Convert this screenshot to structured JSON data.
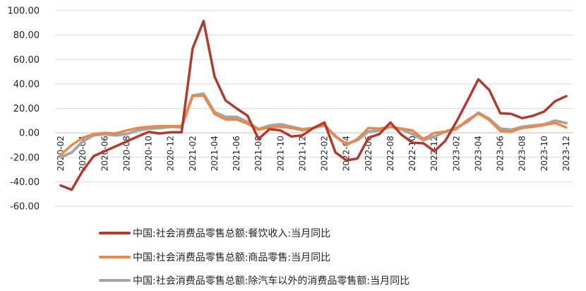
{
  "chart_data": {
    "type": "line",
    "title": "",
    "xlabel": "",
    "ylabel": "",
    "ylim": [
      -60,
      100
    ],
    "yticks": [
      100,
      80,
      60,
      40,
      20,
      0,
      -20,
      -40,
      -60
    ],
    "ytick_labels": [
      "100.00",
      "80.00",
      "60.00",
      "40.00",
      "20.00",
      "0.00",
      "-20.00",
      "-40.00",
      "-60.00"
    ],
    "xtick_labels": [
      "2020-02",
      "2020-04",
      "2020-06",
      "2020-08",
      "2020-10",
      "2020-12",
      "2021-02",
      "2021-04",
      "2021-06",
      "2021-08",
      "2021-10",
      "2021-12",
      "2022-02",
      "2022-04",
      "2022-06",
      "2022-08",
      "2022-10",
      "2022-12",
      "2023-02",
      "2023-04",
      "2023-06",
      "2023-08",
      "2023-10",
      "2023-12"
    ],
    "grid": "horizontal",
    "legend_position": "bottom",
    "x": [
      "2020-02",
      "2020-03",
      "2020-04",
      "2020-05",
      "2020-06",
      "2020-07",
      "2020-08",
      "2020-09",
      "2020-10",
      "2020-11",
      "2020-12",
      "2021-01",
      "2021-02",
      "2021-03",
      "2021-04",
      "2021-05",
      "2021-06",
      "2021-07",
      "2021-08",
      "2021-09",
      "2021-10",
      "2021-11",
      "2021-12",
      "2022-01",
      "2022-02",
      "2022-03",
      "2022-04",
      "2022-05",
      "2022-06",
      "2022-07",
      "2022-08",
      "2022-09",
      "2022-10",
      "2022-11",
      "2022-12",
      "2023-01",
      "2023-02",
      "2023-03",
      "2023-04",
      "2023-05",
      "2023-06",
      "2023-07",
      "2023-08",
      "2023-09",
      "2023-10",
      "2023-11",
      "2023-12"
    ],
    "series": [
      {
        "name": "中国:社会消费品零售总额:餐饮收入:当月同比",
        "color": "#b03a2e",
        "values": [
          -43,
          -46.5,
          -31,
          -19,
          -15,
          -11,
          -7,
          -3,
          0.8,
          -0.5,
          0.5,
          0.5,
          69,
          91.5,
          46,
          26.5,
          20,
          14,
          -5,
          3,
          2,
          -3,
          -2,
          4,
          8.5,
          -16,
          -22.5,
          -21,
          -4,
          -1,
          8.5,
          -1.5,
          -8,
          -8.5,
          -15,
          -6.5,
          9,
          26,
          43.8,
          35,
          16,
          15.5,
          12,
          14,
          17.5,
          26,
          30
        ]
      },
      {
        "name": "中国:社会消费品零售总额:商品零售:当月同比",
        "color": "#e8884a",
        "values": [
          -18,
          -10,
          -4,
          -1,
          0,
          -0.5,
          2,
          4,
          5,
          5.5,
          5.5,
          5.5,
          30,
          30.5,
          15.5,
          11,
          11,
          7.5,
          2.5,
          4.5,
          5,
          4,
          2,
          4,
          6,
          -2.5,
          -10,
          -5,
          4,
          3.5,
          5,
          3.5,
          2,
          -5,
          0,
          1,
          3,
          10.5,
          15.8,
          10.5,
          1.5,
          1,
          4,
          5,
          6.5,
          8,
          4.5
        ]
      },
      {
        "name": "中国:社会消费品零售总额:除汽车以外的消费品零售额:当月同比",
        "color": "#a5a5a5",
        "values": [
          -20,
          -16,
          -7,
          -2,
          -1,
          -2,
          -1,
          2,
          3.5,
          4,
          5,
          4.5,
          30.5,
          32,
          17,
          13,
          13,
          9,
          3,
          6,
          7,
          5,
          3,
          4,
          6.5,
          -3,
          -9,
          -6,
          1,
          2,
          5,
          3,
          -1,
          -6,
          -3,
          1,
          4,
          9,
          16.5,
          11.5,
          3.5,
          2.5,
          5,
          6,
          7,
          10,
          8
        ]
      }
    ]
  }
}
